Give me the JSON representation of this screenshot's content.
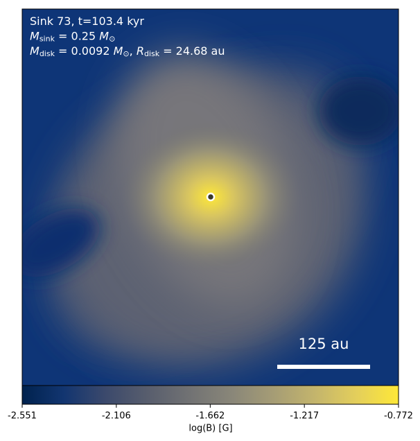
{
  "chart_data": {
    "type": "heatmap",
    "colormap": "cividis",
    "annotations": [
      [
        {
          "text": "Sink 73, t=103.4 kyr",
          "style": "normal"
        }
      ],
      [
        {
          "text": "M",
          "style": "italic"
        },
        {
          "text": "sink",
          "style": "sub"
        },
        {
          "text": " = 0.25 ",
          "style": "normal"
        },
        {
          "text": "M",
          "style": "italic"
        },
        {
          "text": "⊙",
          "style": "sub"
        }
      ],
      [
        {
          "text": "M",
          "style": "italic"
        },
        {
          "text": "disk",
          "style": "sub"
        },
        {
          "text": " = 0.0092 ",
          "style": "normal"
        },
        {
          "text": "M",
          "style": "italic"
        },
        {
          "text": "⊙",
          "style": "sub"
        },
        {
          "text": ", ",
          "style": "normal"
        },
        {
          "text": "R",
          "style": "italic"
        },
        {
          "text": "disk",
          "style": "sub"
        },
        {
          "text": " = 24.68 au",
          "style": "normal"
        }
      ]
    ],
    "scale_bar_label": "125 au",
    "colorbar": {
      "label": "log(B) [G]",
      "lim": [
        -2.551,
        -0.772
      ],
      "ticks": [
        -2.551,
        -2.106,
        -1.662,
        -1.217,
        -0.772
      ]
    }
  }
}
